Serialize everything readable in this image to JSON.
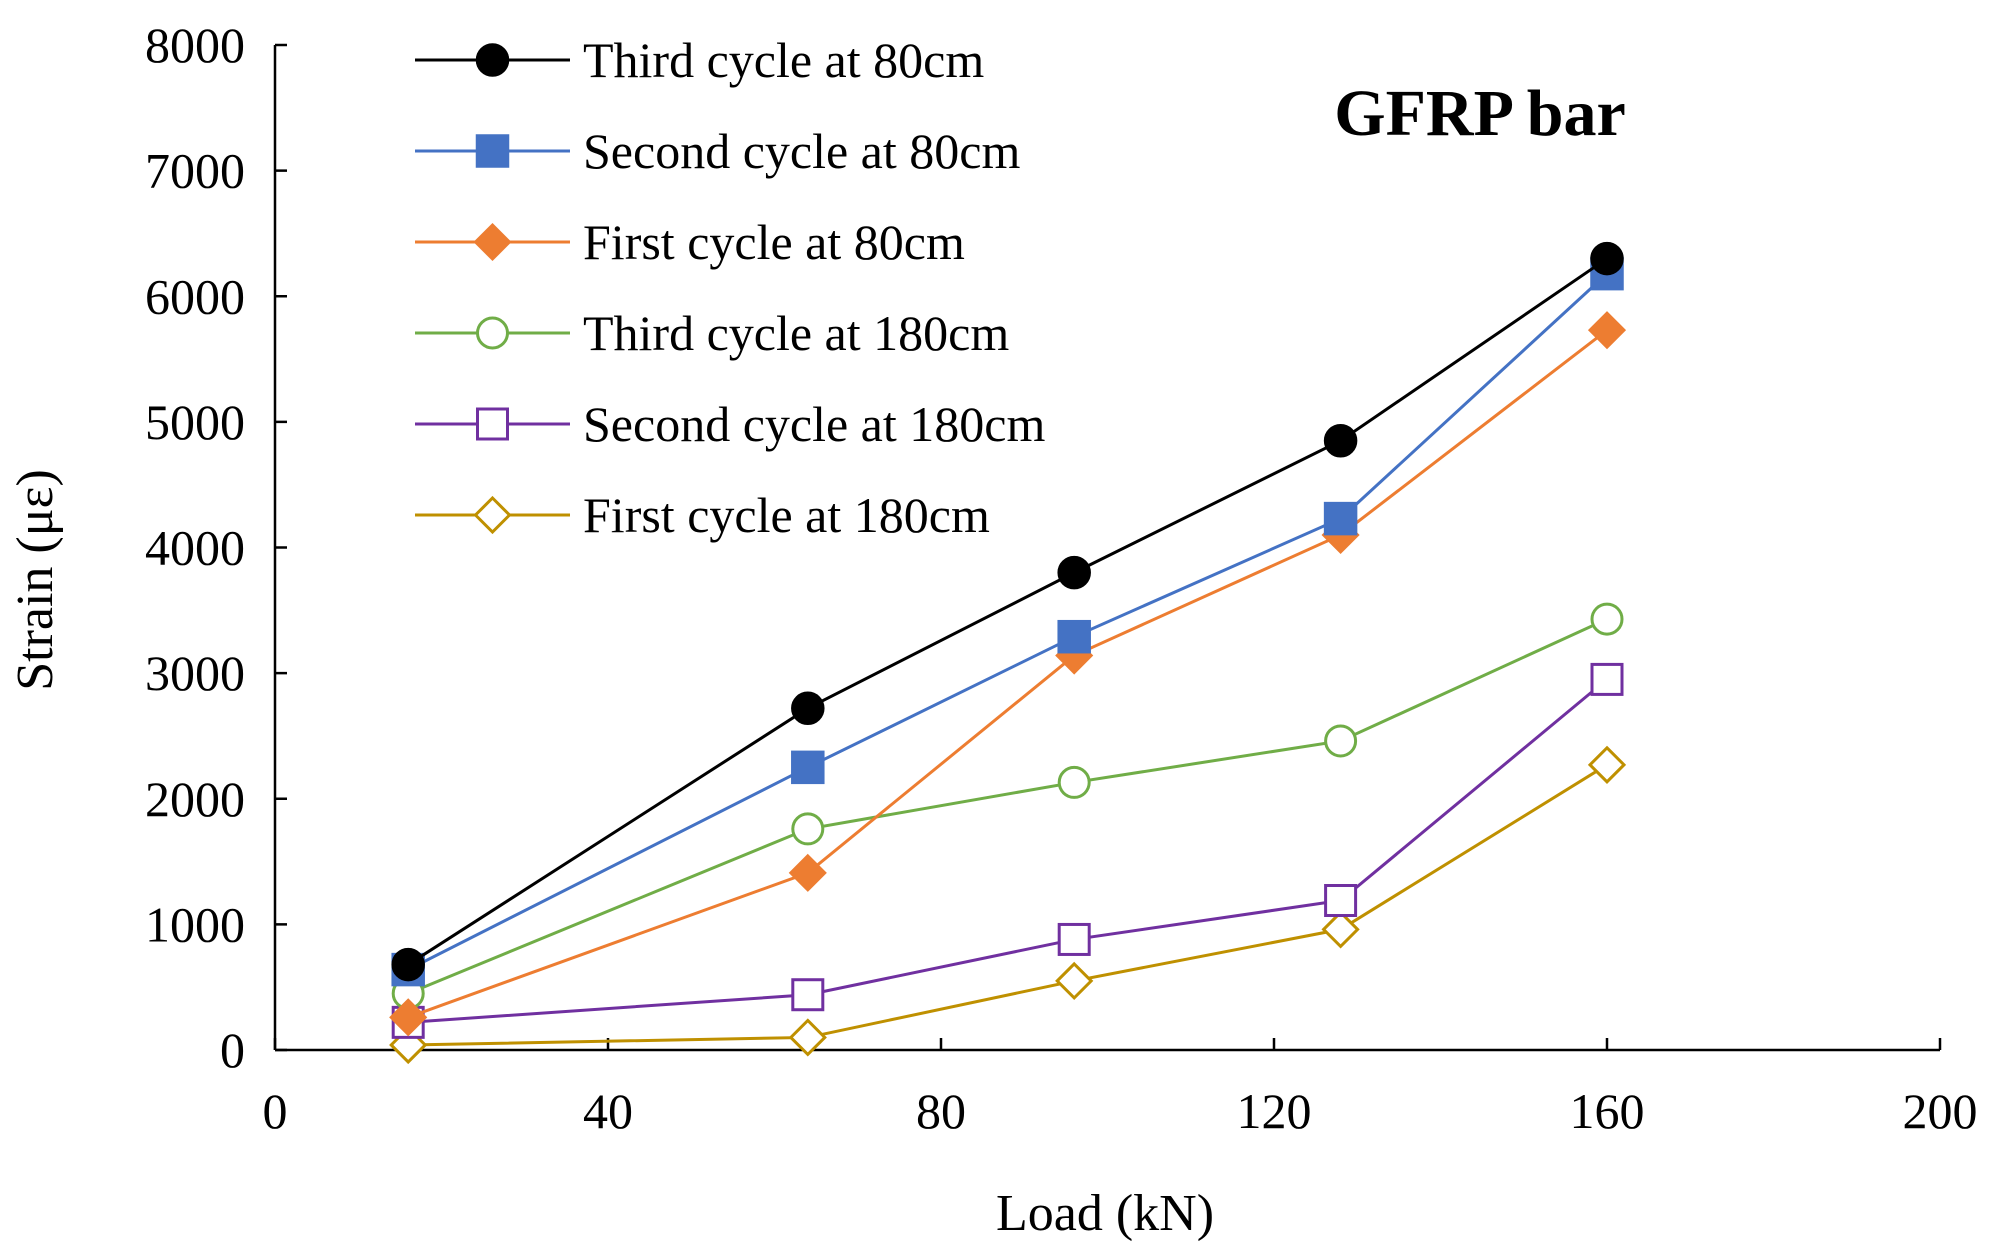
{
  "chart_data": {
    "type": "line",
    "title": "GFRP bar",
    "xlabel": "Load (kN)",
    "ylabel": "Strain (με)",
    "xlim": [
      0,
      200
    ],
    "ylim": [
      0,
      8000
    ],
    "xticks": [
      "0",
      "40",
      "80",
      "120",
      "160",
      "200"
    ],
    "yticks": [
      "0",
      "1000",
      "2000",
      "3000",
      "4000",
      "5000",
      "6000",
      "7000",
      "8000"
    ],
    "x": [
      16,
      64,
      96,
      128,
      160
    ],
    "legend_position": "top-left",
    "series": [
      {
        "name": "Third cycle at 80cm",
        "marker": "circle",
        "filled": true,
        "color": "#000000",
        "values": [
          680,
          2720,
          3800,
          4850,
          6300
        ]
      },
      {
        "name": "Second cycle at 80cm",
        "marker": "square",
        "filled": true,
        "color": "#4472C4",
        "values": [
          640,
          2250,
          3290,
          4230,
          6180
        ]
      },
      {
        "name": "First cycle at 80cm",
        "marker": "diamond",
        "filled": true,
        "color": "#ED7D31",
        "values": [
          260,
          1410,
          3140,
          4100,
          5730
        ]
      },
      {
        "name": "Third cycle at 180cm",
        "marker": "circle",
        "filled": false,
        "color": "#70AD47",
        "values": [
          450,
          1760,
          2130,
          2460,
          3430
        ]
      },
      {
        "name": "Second cycle at 180cm",
        "marker": "square",
        "filled": false,
        "color": "#7030A0",
        "values": [
          220,
          440,
          880,
          1190,
          2950
        ]
      },
      {
        "name": "First cycle at 180cm",
        "marker": "diamond",
        "filled": false,
        "color": "#BF9000",
        "values": [
          40,
          100,
          550,
          960,
          2270
        ]
      }
    ]
  }
}
